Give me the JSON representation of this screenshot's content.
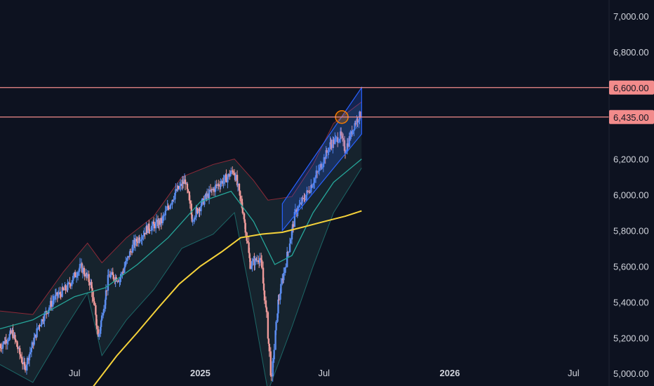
{
  "chart_data": {
    "type": "line",
    "x_ticks": [
      "Jul",
      "2025",
      "Jul",
      "2026",
      "Jul"
    ],
    "x_ticks_bold": [
      false,
      true,
      false,
      true,
      false
    ],
    "x_tick_dates": [
      "2024-07-01",
      "2025-01-01",
      "2025-07-01",
      "2026-01-01",
      "2026-07-01"
    ],
    "y_ticks": [
      "7,000.00",
      "6,800.00",
      "6,600.00",
      "6,200.00",
      "6,000.00",
      "5,800.00",
      "5,600.00",
      "5,400.00",
      "5,200.00",
      "5,000.00"
    ],
    "ylim": [
      4930,
      7090
    ],
    "xlim": [
      "2024-03-14",
      "2026-08-22"
    ],
    "horizontal_levels": [
      {
        "value": 6600,
        "label": "6,600.00"
      },
      {
        "value": 6435,
        "label": "6,435.00"
      }
    ],
    "series": [
      {
        "type": "line",
        "color": "#3a6ff7",
        "x": [
          "2024-03-14",
          "2024-04-01",
          "2024-04-19",
          "2024-05-10",
          "2024-06-01",
          "2024-06-20",
          "2024-07-10",
          "2024-07-25",
          "2024-08-05",
          "2024-08-20",
          "2024-09-05",
          "2024-09-25",
          "2024-10-15",
          "2024-11-05",
          "2024-11-25",
          "2024-12-10",
          "2024-12-20",
          "2025-01-10",
          "2025-01-25",
          "2025-02-10",
          "2025-02-19",
          "2025-03-05",
          "2025-03-15",
          "2025-03-30",
          "2025-04-08",
          "2025-04-15",
          "2025-04-25",
          "2025-05-05",
          "2025-05-20",
          "2025-06-05",
          "2025-06-25",
          "2025-07-10",
          "2025-07-25",
          "2025-08-01",
          "2025-08-15",
          "2025-08-25"
        ],
        "y": [
          5150,
          5230,
          5030,
          5270,
          5420,
          5480,
          5600,
          5500,
          5200,
          5550,
          5530,
          5720,
          5810,
          5850,
          6010,
          6080,
          5870,
          5990,
          6050,
          6100,
          6140,
          5900,
          5610,
          5650,
          5320,
          4960,
          5400,
          5600,
          5900,
          6000,
          6150,
          6280,
          6330,
          6250,
          6400,
          6460
        ]
      },
      {
        "type": "line",
        "name": "",
        "color": "#26a69a",
        "x": [
          "2024-03-14",
          "2024-05-01",
          "2024-07-01",
          "2024-08-15",
          "2024-10-01",
          "2024-11-15",
          "2025-01-01",
          "2025-02-15",
          "2025-03-20",
          "2025-04-20",
          "2025-05-15",
          "2025-06-15",
          "2025-07-15",
          "2025-08-25"
        ],
        "y": [
          5250,
          5300,
          5430,
          5480,
          5610,
          5760,
          5960,
          6020,
          5850,
          5610,
          5660,
          5900,
          6070,
          6200
        ]
      },
      {
        "type": "line",
        "color": "#f5d23a",
        "x": [
          "2024-07-25",
          "2024-09-01",
          "2024-10-01",
          "2024-11-01",
          "2024-12-01",
          "2025-01-01",
          "2025-02-01",
          "2025-03-01",
          "2025-04-01",
          "2025-05-01",
          "2025-06-01",
          "2025-07-01",
          "2025-08-01",
          "2025-08-25"
        ],
        "y": [
          4910,
          5100,
          5230,
          5370,
          5500,
          5600,
          5680,
          5760,
          5780,
          5790,
          5820,
          5850,
          5880,
          5910
        ]
      }
    ],
    "bands": [
      {
        "color": "#f23645",
        "x": [
          "2024-03-14",
          "2024-05-01",
          "2024-06-15",
          "2024-07-20",
          "2024-08-10",
          "2024-09-15",
          "2024-10-25",
          "2024-12-05",
          "2025-01-20",
          "2025-02-20",
          "2025-03-20",
          "2025-04-10",
          "2025-05-15",
          "2025-06-15",
          "2025-07-15",
          "2025-08-25"
        ],
        "upper": [
          5350,
          5330,
          5570,
          5730,
          5620,
          5760,
          5880,
          6100,
          6170,
          6200,
          6080,
          5970,
          5990,
          6170,
          6400,
          6520
        ],
        "lower": [
          5050,
          4950,
          5240,
          5450,
          5100,
          5300,
          5470,
          5700,
          5780,
          5900,
          5350,
          4900,
          5260,
          5600,
          5900,
          6150
        ]
      }
    ],
    "channel": {
      "color": "#2962ff",
      "x_start": "2025-05-01",
      "x_end": "2025-08-25",
      "upper_start": 5950,
      "upper_end": 6600,
      "lower_start": 5800,
      "lower_end": 6340
    },
    "highlight": {
      "x": "2025-07-27",
      "y": 6435
    }
  }
}
